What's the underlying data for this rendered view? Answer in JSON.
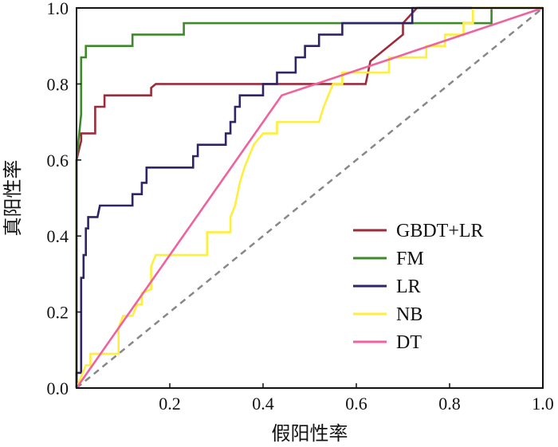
{
  "chart_data": {
    "type": "line",
    "title": "",
    "xlabel": "假阳性率",
    "ylabel": "真阳性率",
    "xlim": [
      0,
      1
    ],
    "ylim": [
      0,
      1
    ],
    "x_ticks": [
      "0.2",
      "0.4",
      "0.6",
      "0.8",
      "1.0"
    ],
    "y_ticks": [
      "0.0",
      "0.2",
      "0.4",
      "0.6",
      "0.8",
      "1.0"
    ],
    "grid": false,
    "legend_position": "bottom-right",
    "diagonal": {
      "style": "dashed",
      "color": "#888888",
      "points": [
        [
          0,
          0
        ],
        [
          1,
          1
        ]
      ]
    },
    "series": [
      {
        "name": "GBDT+LR",
        "color": "#9b2d3a",
        "points": [
          [
            0,
            0
          ],
          [
            0,
            0.6
          ],
          [
            0.01,
            0.65
          ],
          [
            0.01,
            0.67
          ],
          [
            0.04,
            0.67
          ],
          [
            0.04,
            0.74
          ],
          [
            0.06,
            0.74
          ],
          [
            0.06,
            0.77
          ],
          [
            0.07,
            0.77
          ],
          [
            0.16,
            0.77
          ],
          [
            0.16,
            0.79
          ],
          [
            0.17,
            0.8
          ],
          [
            0.62,
            0.8
          ],
          [
            0.63,
            0.86
          ],
          [
            0.7,
            0.93
          ],
          [
            0.7,
            0.96
          ],
          [
            0.73,
            1.0
          ],
          [
            1.0,
            1.0
          ]
        ]
      },
      {
        "name": "FM",
        "color": "#3e8a2a",
        "points": [
          [
            0,
            0
          ],
          [
            0,
            0.6
          ],
          [
            0.01,
            0.72
          ],
          [
            0.01,
            0.87
          ],
          [
            0.02,
            0.87
          ],
          [
            0.02,
            0.9
          ],
          [
            0.04,
            0.9
          ],
          [
            0.12,
            0.9
          ],
          [
            0.12,
            0.93
          ],
          [
            0.23,
            0.93
          ],
          [
            0.23,
            0.96
          ],
          [
            0.89,
            0.96
          ],
          [
            0.89,
            1.0
          ],
          [
            1.0,
            1.0
          ]
        ]
      },
      {
        "name": "LR",
        "color": "#2e2566",
        "points": [
          [
            0,
            0
          ],
          [
            0,
            0.04
          ],
          [
            0.01,
            0.04
          ],
          [
            0.01,
            0.29
          ],
          [
            0.015,
            0.29
          ],
          [
            0.015,
            0.35
          ],
          [
            0.02,
            0.35
          ],
          [
            0.02,
            0.42
          ],
          [
            0.025,
            0.42
          ],
          [
            0.025,
            0.45
          ],
          [
            0.045,
            0.45
          ],
          [
            0.05,
            0.48
          ],
          [
            0.12,
            0.48
          ],
          [
            0.12,
            0.51
          ],
          [
            0.14,
            0.51
          ],
          [
            0.14,
            0.54
          ],
          [
            0.15,
            0.54
          ],
          [
            0.15,
            0.58
          ],
          [
            0.25,
            0.58
          ],
          [
            0.25,
            0.61
          ],
          [
            0.26,
            0.61
          ],
          [
            0.26,
            0.64
          ],
          [
            0.32,
            0.64
          ],
          [
            0.32,
            0.67
          ],
          [
            0.33,
            0.67
          ],
          [
            0.33,
            0.7
          ],
          [
            0.34,
            0.7
          ],
          [
            0.34,
            0.74
          ],
          [
            0.35,
            0.74
          ],
          [
            0.35,
            0.77
          ],
          [
            0.38,
            0.77
          ],
          [
            0.4,
            0.77
          ],
          [
            0.4,
            0.8
          ],
          [
            0.43,
            0.8
          ],
          [
            0.43,
            0.83
          ],
          [
            0.47,
            0.83
          ],
          [
            0.47,
            0.87
          ],
          [
            0.49,
            0.87
          ],
          [
            0.49,
            0.9
          ],
          [
            0.52,
            0.9
          ],
          [
            0.52,
            0.93
          ],
          [
            0.57,
            0.93
          ],
          [
            0.57,
            0.96
          ],
          [
            0.72,
            0.96
          ],
          [
            0.72,
            1.0
          ],
          [
            1.0,
            1.0
          ]
        ]
      },
      {
        "name": "NB",
        "color": "#ffef3c",
        "points": [
          [
            0,
            0
          ],
          [
            0.01,
            0.03
          ],
          [
            0.02,
            0.06
          ],
          [
            0.03,
            0.06
          ],
          [
            0.03,
            0.09
          ],
          [
            0.09,
            0.09
          ],
          [
            0.09,
            0.16
          ],
          [
            0.1,
            0.19
          ],
          [
            0.12,
            0.19
          ],
          [
            0.13,
            0.22
          ],
          [
            0.14,
            0.22
          ],
          [
            0.14,
            0.25
          ],
          [
            0.16,
            0.26
          ],
          [
            0.16,
            0.32
          ],
          [
            0.17,
            0.35
          ],
          [
            0.28,
            0.35
          ],
          [
            0.28,
            0.41
          ],
          [
            0.33,
            0.41
          ],
          [
            0.33,
            0.45
          ],
          [
            0.34,
            0.48
          ],
          [
            0.35,
            0.54
          ],
          [
            0.36,
            0.58
          ],
          [
            0.37,
            0.61
          ],
          [
            0.38,
            0.64
          ],
          [
            0.4,
            0.67
          ],
          [
            0.43,
            0.67
          ],
          [
            0.43,
            0.7
          ],
          [
            0.52,
            0.7
          ],
          [
            0.53,
            0.74
          ],
          [
            0.54,
            0.77
          ],
          [
            0.55,
            0.8
          ],
          [
            0.57,
            0.8
          ],
          [
            0.57,
            0.83
          ],
          [
            0.63,
            0.83
          ],
          [
            0.65,
            0.83
          ],
          [
            0.67,
            0.83
          ],
          [
            0.67,
            0.87
          ],
          [
            0.75,
            0.87
          ],
          [
            0.75,
            0.9
          ],
          [
            0.79,
            0.9
          ],
          [
            0.79,
            0.93
          ],
          [
            0.83,
            0.93
          ],
          [
            0.83,
            0.96
          ],
          [
            0.85,
            0.96
          ],
          [
            0.85,
            1.0
          ],
          [
            1.0,
            1.0
          ]
        ]
      },
      {
        "name": "DT",
        "color": "#f0629e",
        "points": [
          [
            0,
            0
          ],
          [
            0.44,
            0.77
          ],
          [
            1.0,
            1.0
          ]
        ]
      }
    ]
  }
}
